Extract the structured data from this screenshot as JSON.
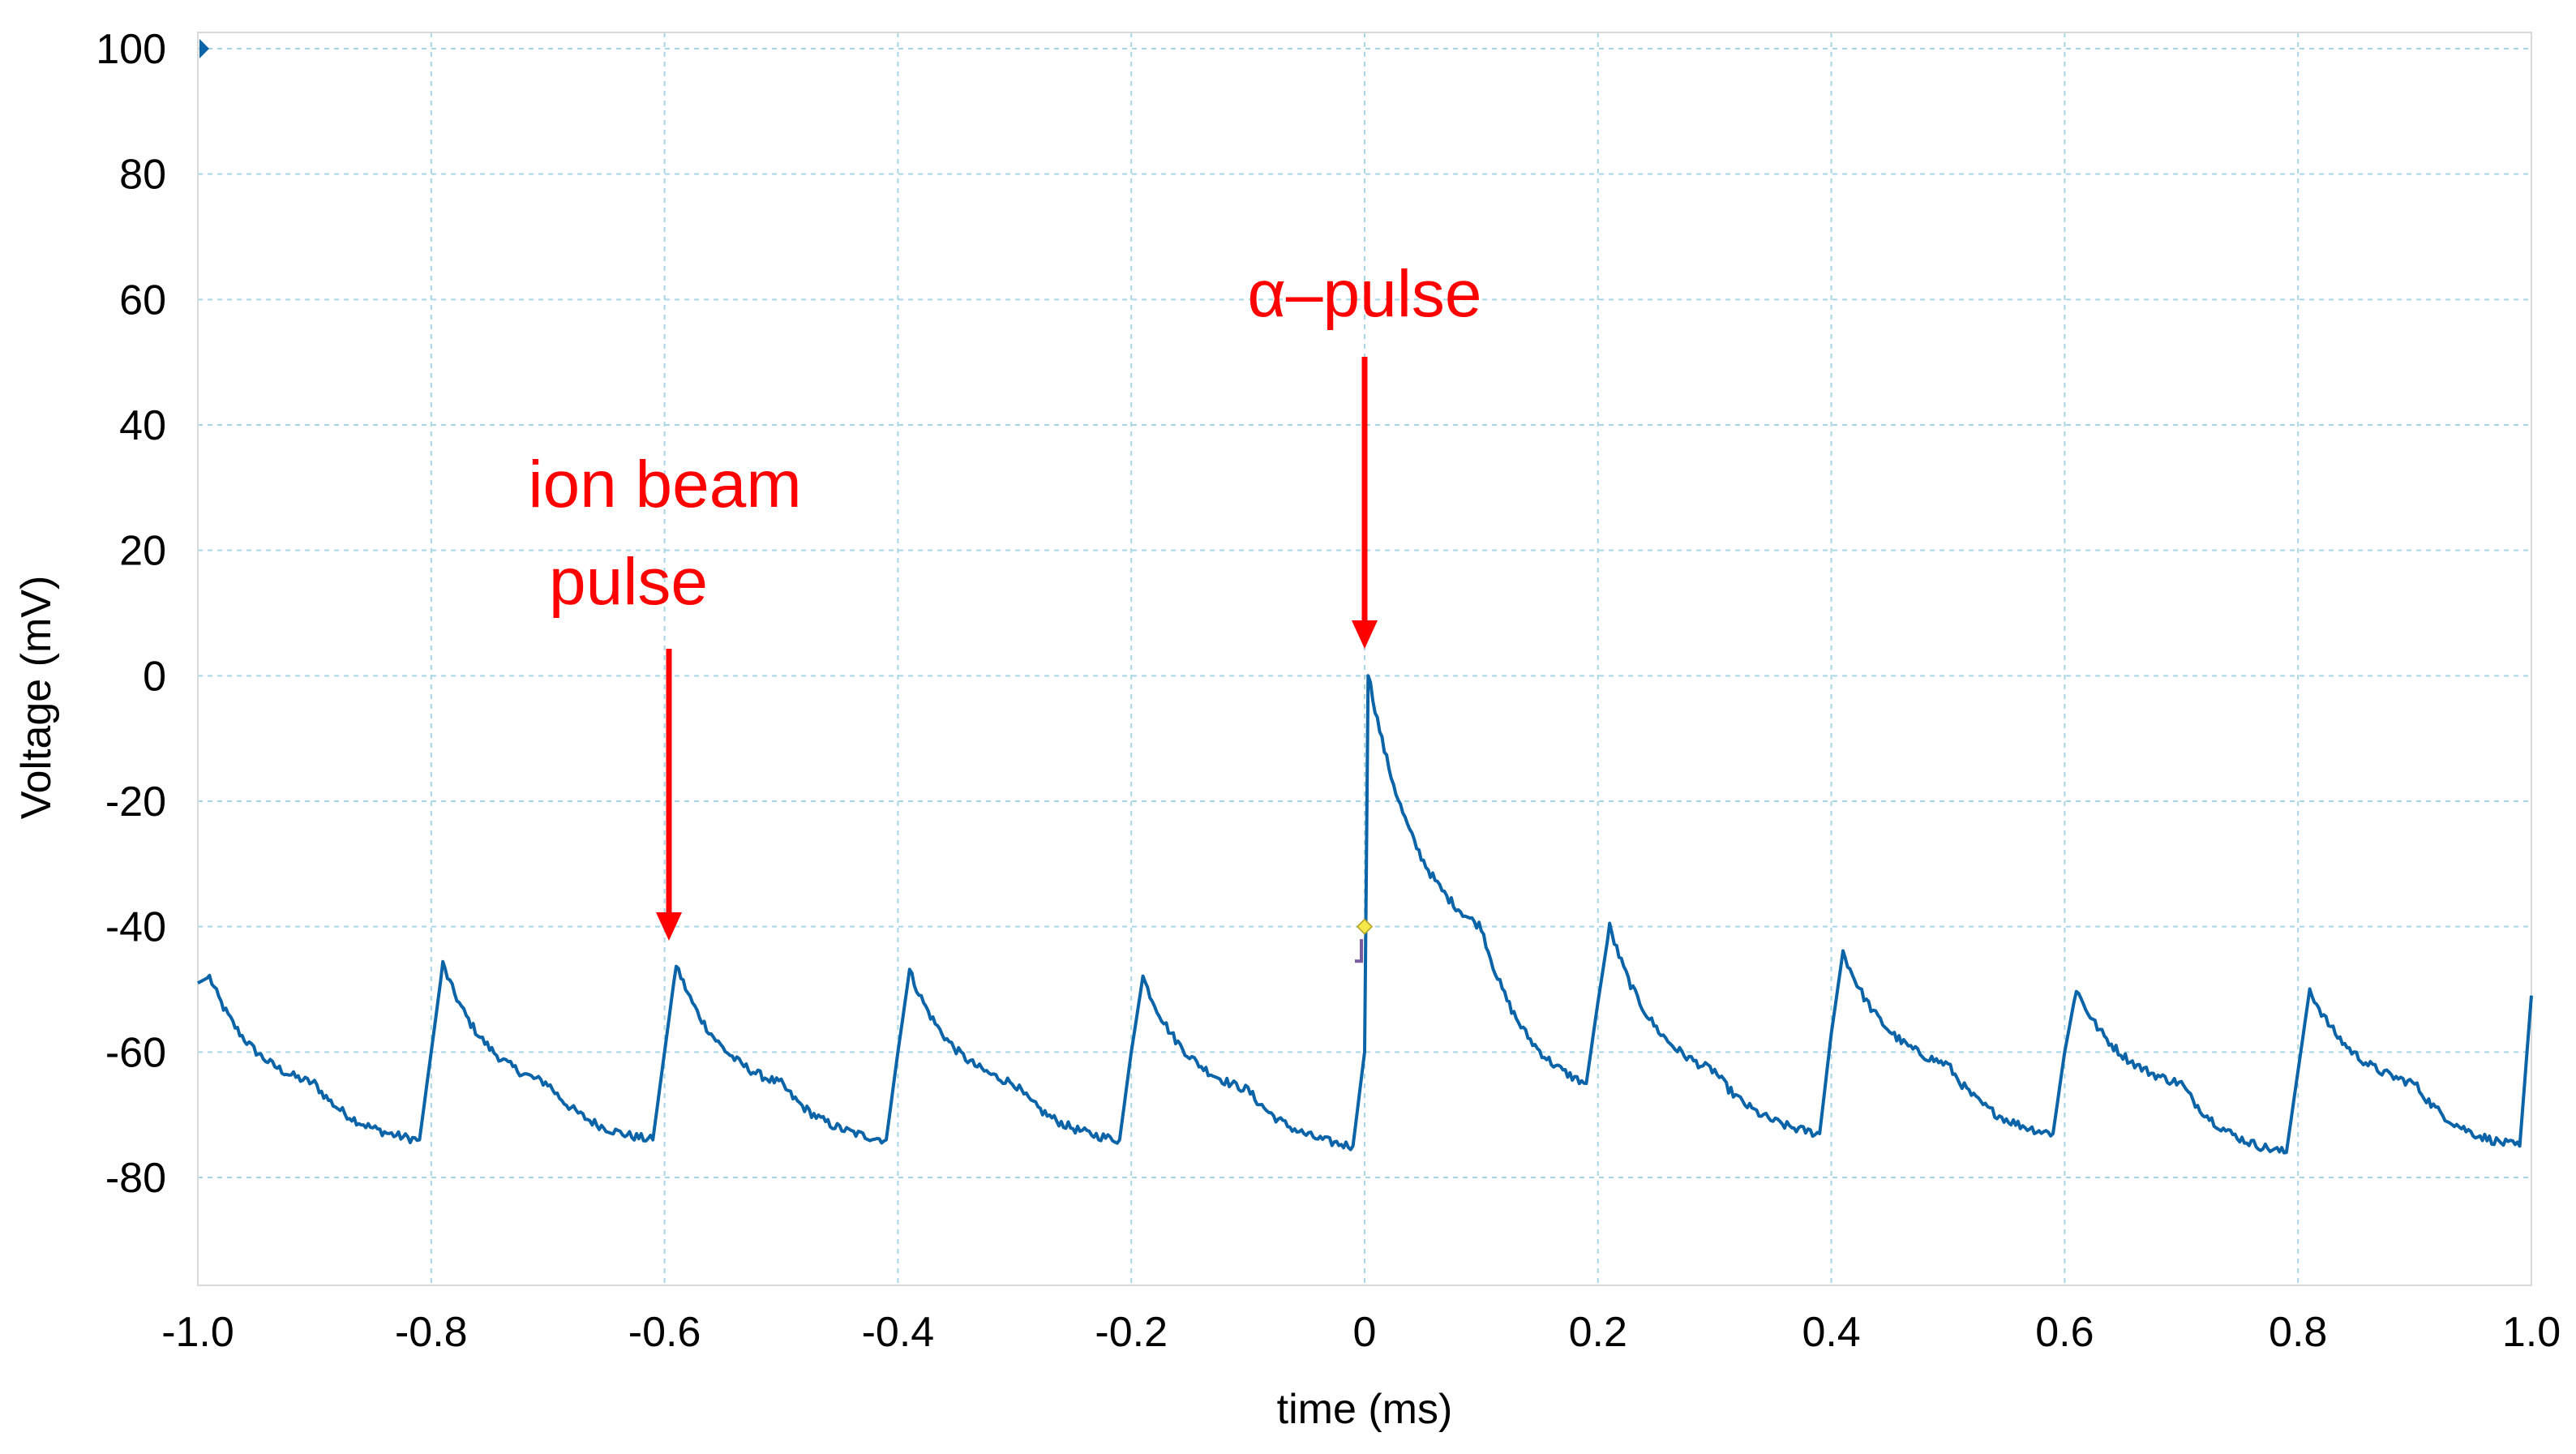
{
  "chart_data": {
    "type": "line",
    "title": "",
    "xlabel": "time (ms)",
    "ylabel": "Voltage (mV)",
    "xlim": [
      -1.0,
      1.0
    ],
    "ylim": [
      -96,
      100
    ],
    "x_ticks": [
      -1.0,
      -0.8,
      -0.6,
      -0.4,
      -0.2,
      0,
      0.2,
      0.4,
      0.6,
      0.8,
      1.0
    ],
    "x_tick_labels": [
      "-1.0",
      "-0.8",
      "-0.6",
      "-0.4",
      "-0.2",
      "0",
      "0.2",
      "0.4",
      "0.6",
      "0.8",
      "1.0"
    ],
    "y_ticks": [
      100,
      80,
      60,
      40,
      20,
      0,
      -20,
      -40,
      -60,
      -80
    ],
    "y_tick_labels": [
      "100",
      "80",
      "60",
      "40",
      "20",
      "0",
      "-20",
      "-40",
      "-60",
      "-80"
    ],
    "grid": true,
    "series": [
      {
        "name": "Voltage",
        "color": "#0b64a8",
        "x": [
          -1.0,
          -0.99,
          -0.9,
          -0.81,
          -0.8,
          -0.79,
          -0.7,
          -0.61,
          -0.6,
          -0.59,
          -0.5,
          -0.41,
          -0.4,
          -0.39,
          -0.3,
          -0.21,
          -0.2,
          -0.19,
          -0.1,
          -0.01,
          0.0,
          0.003,
          0.1,
          0.19,
          0.2,
          0.21,
          0.3,
          0.39,
          0.4,
          0.41,
          0.5,
          0.59,
          0.6,
          0.61,
          0.7,
          0.79,
          0.8,
          0.81,
          0.9,
          0.99,
          1.0
        ],
        "y": [
          -49,
          -48,
          -65,
          -74,
          -60,
          -46,
          -65,
          -74,
          -60,
          -46,
          -65,
          -74,
          -60,
          -47,
          -65,
          -74,
          -60,
          -48,
          -66,
          -75,
          -60,
          0.5,
          -40,
          -65,
          -52,
          -40,
          -63,
          -73,
          -57,
          -44,
          -62,
          -73,
          -60,
          -50,
          -65,
          -76,
          -63,
          -50,
          -65,
          -75,
          -51
        ]
      }
    ],
    "annotations": [
      {
        "text": "ion beam",
        "text_line2": "pulse",
        "x": -0.6,
        "y": -40,
        "color": "#ff0000"
      },
      {
        "text": "α–pulse",
        "x": 0,
        "y": 2,
        "color": "#ff0000"
      }
    ],
    "colors": {
      "trace": "#0b64a8",
      "annotation": "#ff0000",
      "grid": "#a9d6e5"
    }
  }
}
